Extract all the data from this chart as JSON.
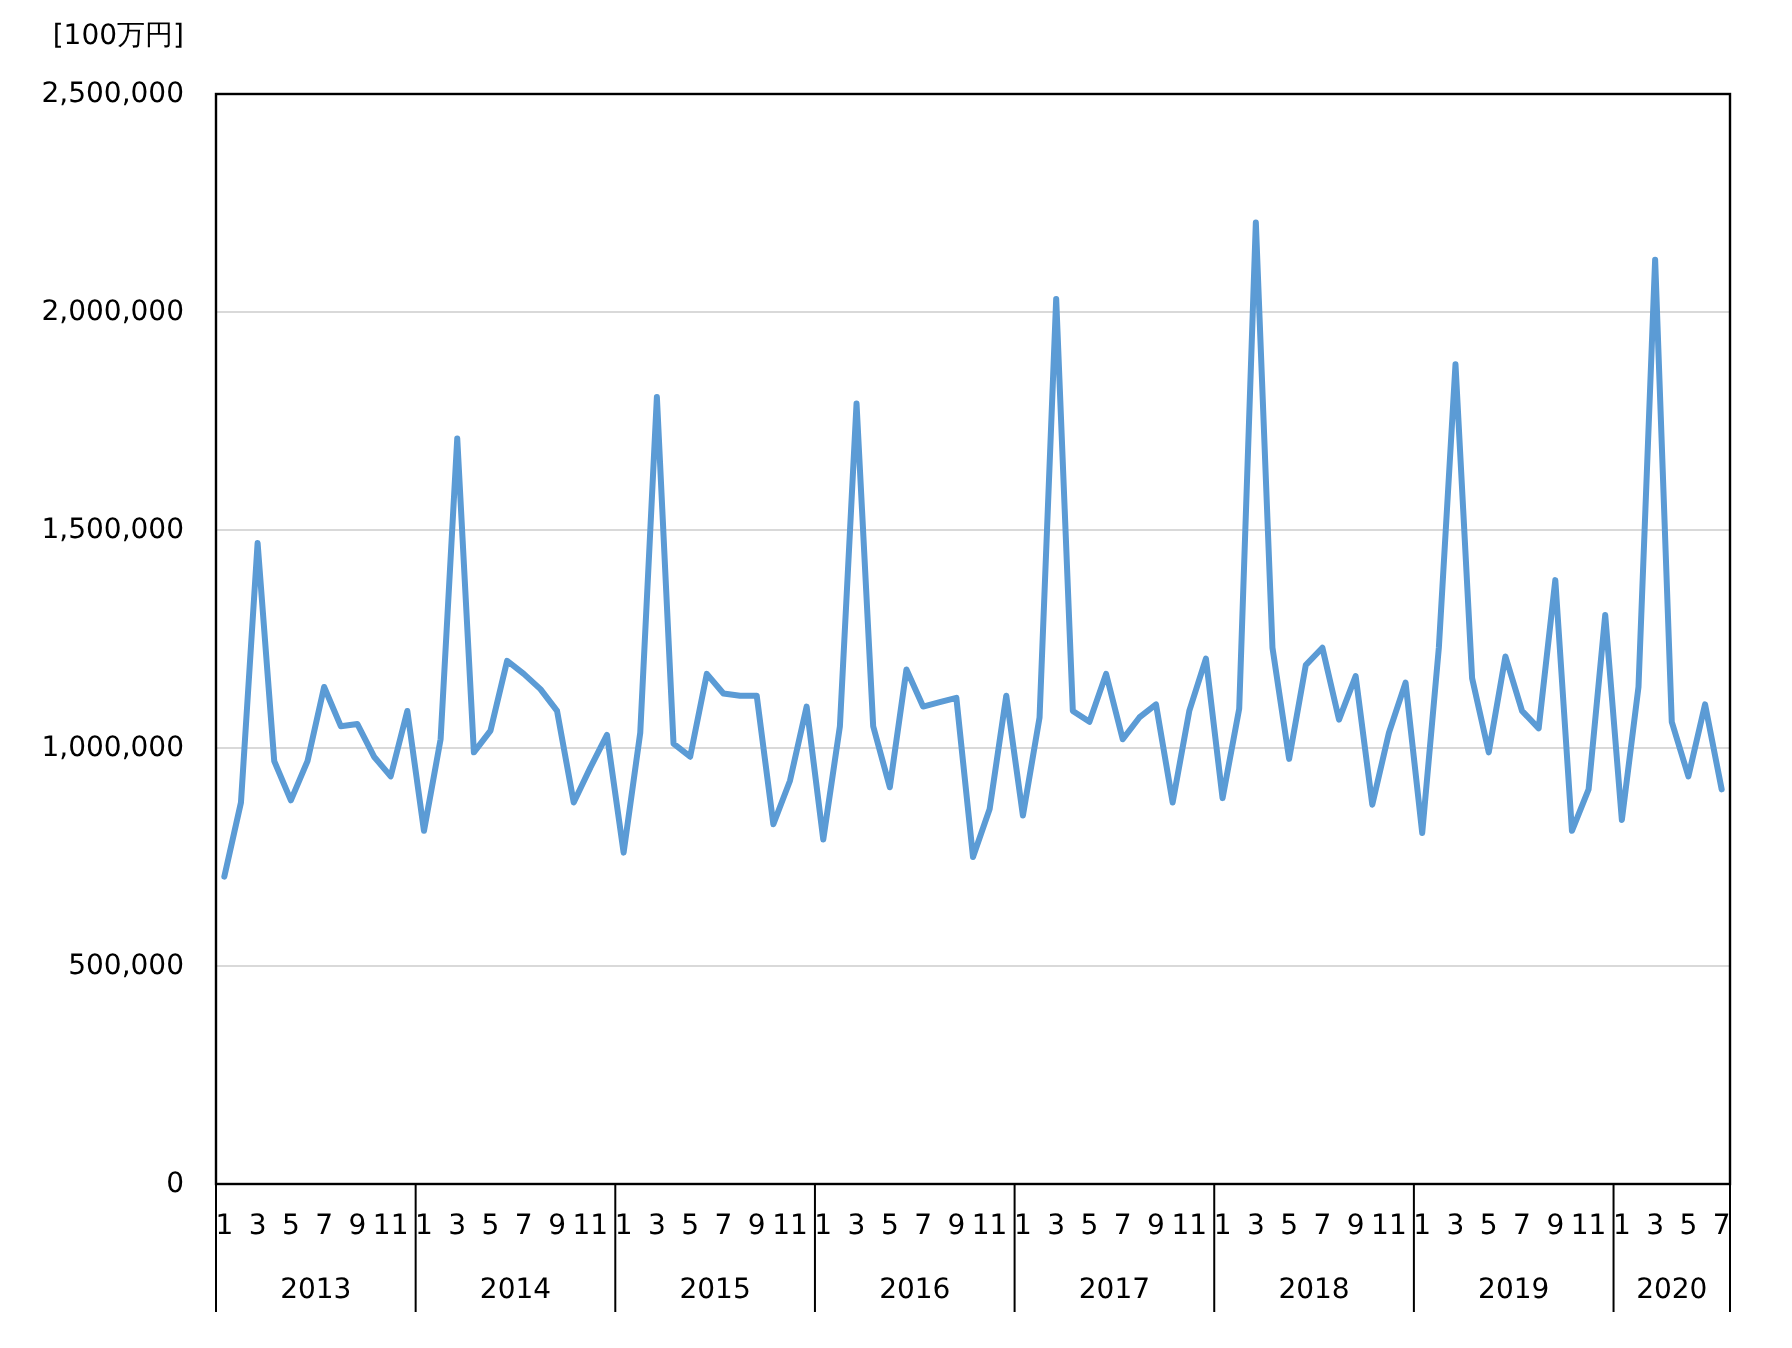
{
  "chart_data": {
    "type": "line",
    "ylabel": "[100万円]",
    "categories": [
      "1",
      null,
      "3",
      null,
      "5",
      null,
      "7",
      null,
      "9",
      null,
      "11",
      null,
      "1",
      null,
      "3",
      null,
      "5",
      null,
      "7",
      null,
      "9",
      null,
      "11",
      null,
      "1",
      null,
      "3",
      null,
      "5",
      null,
      "7",
      null,
      "9",
      null,
      "11",
      null,
      "1",
      null,
      "3",
      null,
      "5",
      null,
      "7",
      null,
      "9",
      null,
      "11",
      null,
      "1",
      null,
      "3",
      null,
      "5",
      null,
      "7",
      null,
      "9",
      null,
      "11",
      null,
      "1",
      null,
      "3",
      null,
      "5",
      null,
      "7",
      null,
      "9",
      null,
      "11",
      null,
      "1",
      null,
      "3",
      null,
      "5",
      null,
      "7",
      null,
      "9",
      null,
      "11",
      null,
      "1",
      null,
      "3",
      null,
      "5",
      null,
      "7"
    ],
    "series": [
      {
        "color": "#5b9bd5",
        "values": [
          705000,
          875000,
          1470000,
          970000,
          880000,
          970000,
          1140000,
          1050000,
          1055000,
          980000,
          935000,
          1085000,
          810000,
          1020000,
          1710000,
          990000,
          1040000,
          1200000,
          1170000,
          1135000,
          1085000,
          875000,
          955000,
          1030000,
          760000,
          1035000,
          1805000,
          1010000,
          980000,
          1170000,
          1125000,
          1120000,
          1120000,
          825000,
          925000,
          1095000,
          790000,
          1050000,
          1790000,
          1050000,
          910000,
          1180000,
          1095000,
          1105000,
          1115000,
          750000,
          860000,
          1120000,
          845000,
          1070000,
          2030000,
          1085000,
          1060000,
          1170000,
          1020000,
          1070000,
          1100000,
          875000,
          1085000,
          1205000,
          885000,
          1090000,
          2205000,
          1230000,
          975000,
          1190000,
          1230000,
          1065000,
          1165000,
          870000,
          1035000,
          1150000,
          805000,
          1230000,
          1880000,
          1160000,
          990000,
          1210000,
          1085000,
          1045000,
          1385000,
          810000,
          905000,
          1305000,
          835000,
          1140000,
          2120000,
          1060000,
          935000,
          1100000,
          905000
        ]
      }
    ],
    "ylim": [
      0,
      2500000
    ],
    "yticks": [
      0,
      {
        "value": 500000,
        "label": "500,000"
      },
      {
        "value": 1000000,
        "label": "1,000,000"
      },
      {
        "value": 1500000,
        "label": "1,500,000"
      },
      {
        "value": 2000000,
        "label": "2,000,000"
      },
      {
        "value": 2500000,
        "label": "2,500,000"
      }
    ],
    "grid": "y",
    "line_style": "solid",
    "annotations": [
      "2013",
      "2014",
      "2015",
      "2016",
      "2017",
      "2018",
      "2019",
      "2020"
    ]
  }
}
